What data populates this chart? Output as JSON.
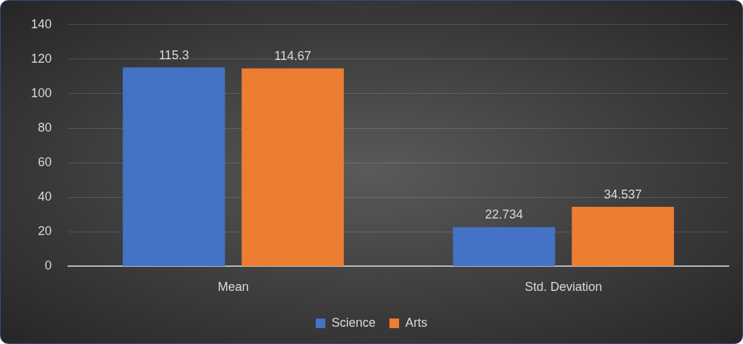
{
  "chart_data": {
    "type": "bar",
    "categories": [
      "Mean",
      "Std. Deviation"
    ],
    "series": [
      {
        "name": "Science",
        "color": "#4472c4",
        "values": [
          115.3,
          22.734
        ]
      },
      {
        "name": "Arts",
        "color": "#ed7d31",
        "values": [
          114.67,
          34.537
        ]
      }
    ],
    "ylim": [
      0,
      140
    ],
    "yticks": [
      0,
      20,
      40,
      60,
      80,
      100,
      120,
      140
    ],
    "grid": "y",
    "legend": "bottom",
    "data_labels": true
  }
}
